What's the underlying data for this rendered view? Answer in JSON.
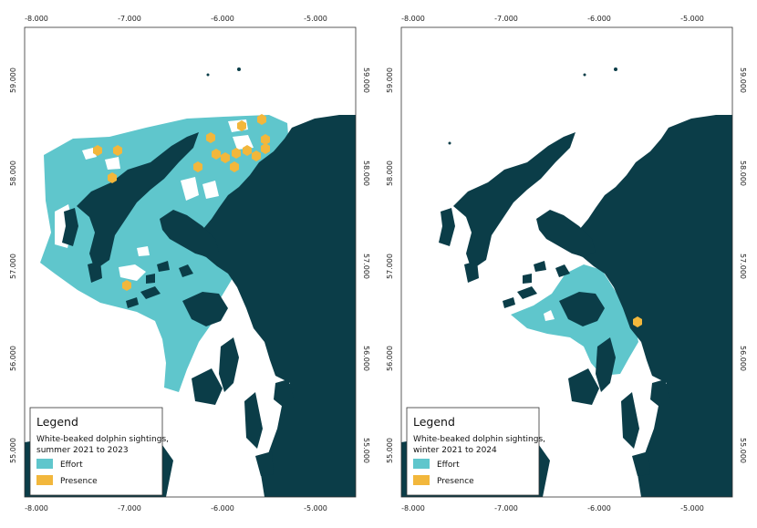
{
  "colors": {
    "land": "#0b3d48",
    "effort": "#5fc6cc",
    "presence": "#f2b73c",
    "sea": "#ffffff",
    "frame": "#333333"
  },
  "x_ticks": [
    "-8.000",
    "-7.000",
    "-6.000",
    "-5.000"
  ],
  "y_ticks": [
    "59.000",
    "58.000",
    "57.000",
    "56.000",
    "55.000"
  ],
  "maps": [
    {
      "season": "summer",
      "legend": {
        "title": "Legend",
        "subtitle_line1": "White-beaked dolphin sightings,",
        "subtitle_line2": "summer 2021 to 2023",
        "items": [
          {
            "label": "Effort",
            "symbol": "effort-swatch"
          },
          {
            "label": "Presence",
            "symbol": "presence-swatch"
          }
        ]
      }
    },
    {
      "season": "winter",
      "legend": {
        "title": "Legend",
        "subtitle_line1": "White-beaked dolphin sightings,",
        "subtitle_line2": "winter 2021 to 2024",
        "items": [
          {
            "label": "Effort",
            "symbol": "effort-swatch"
          },
          {
            "label": "Presence",
            "symbol": "presence-swatch"
          }
        ]
      }
    }
  ]
}
